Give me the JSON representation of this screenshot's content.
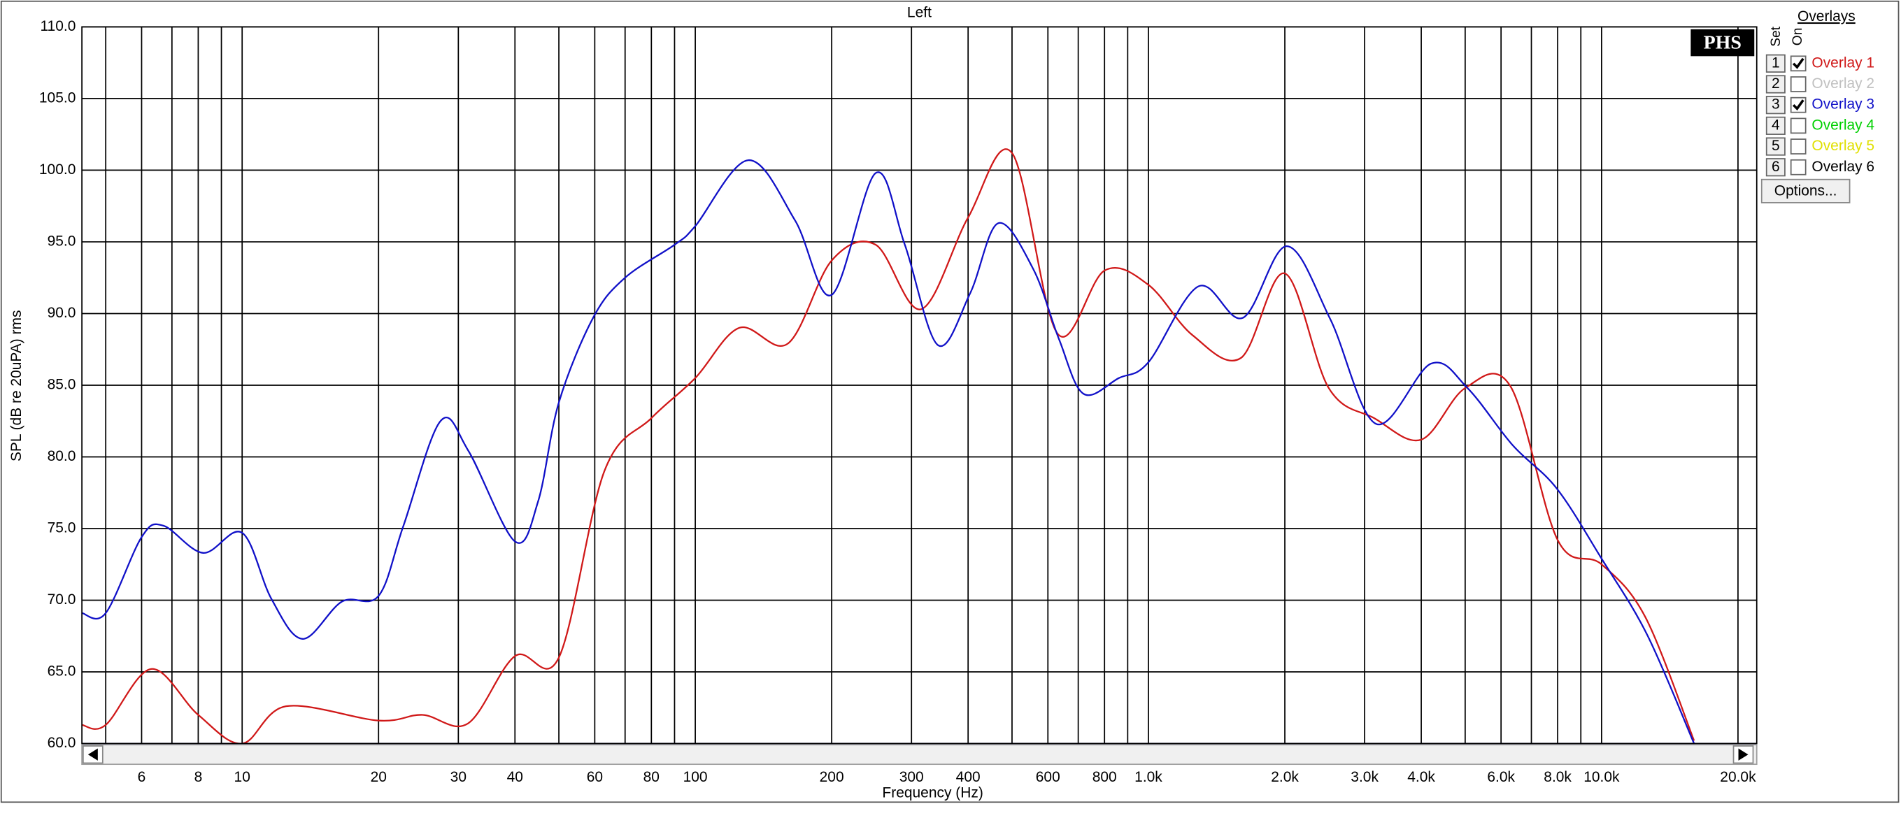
{
  "chart_data": {
    "type": "line",
    "title": "Left",
    "xlabel": "Frequency (Hz)",
    "ylabel": "SPL (dB re 20uPA) rms",
    "xscale": "log",
    "grid": true,
    "xlim": [
      4.43,
      22000
    ],
    "ylim": [
      60,
      110
    ],
    "yticks": [
      {
        "value": 60,
        "label": "60.0"
      },
      {
        "value": 65,
        "label": "65.0"
      },
      {
        "value": 70,
        "label": "70.0"
      },
      {
        "value": 75,
        "label": "75.0"
      },
      {
        "value": 80,
        "label": "80.0"
      },
      {
        "value": 85,
        "label": "85.0"
      },
      {
        "value": 90,
        "label": "90.0"
      },
      {
        "value": 95,
        "label": "95.0"
      },
      {
        "value": 100,
        "label": "100.0"
      },
      {
        "value": 105,
        "label": "105.0"
      },
      {
        "value": 110,
        "label": "110.0"
      }
    ],
    "xticks": [
      {
        "value": 5,
        "label": null
      },
      6,
      {
        "value": 7,
        "label": null
      },
      8,
      {
        "value": 9,
        "label": null
      },
      10,
      20,
      30,
      40,
      {
        "value": 50,
        "label": null
      },
      60,
      {
        "value": 70,
        "label": null
      },
      80,
      {
        "value": 90,
        "label": null
      },
      100,
      200,
      300,
      400,
      {
        "value": 500,
        "label": null
      },
      600,
      {
        "value": 700,
        "label": null
      },
      800,
      {
        "value": 900,
        "label": null
      },
      {
        "value": 1000,
        "label": "1.0k"
      },
      {
        "value": 2000,
        "label": "2.0k"
      },
      {
        "value": 3000,
        "label": "3.0k"
      },
      {
        "value": 4000,
        "label": "4.0k"
      },
      {
        "value": 5000,
        "label": null
      },
      {
        "value": 6000,
        "label": "6.0k"
      },
      {
        "value": 7000,
        "label": null
      },
      {
        "value": 8000,
        "label": "8.0k"
      },
      {
        "value": 9000,
        "label": null
      },
      {
        "value": 10000,
        "label": "10.0k"
      },
      {
        "value": 20000,
        "label": "20.0k"
      }
    ],
    "series": [
      {
        "name": "Overlay 1",
        "color": "#d01818",
        "x": [
          4.43,
          5,
          6.3,
          8,
          10,
          12.5,
          20,
          25,
          31.5,
          40,
          50,
          63,
          80,
          100,
          125,
          160,
          200,
          250,
          315,
          400,
          500,
          630,
          800,
          1000,
          1250,
          1600,
          2000,
          2500,
          3150,
          4000,
          5000,
          6300,
          8000,
          10000,
          12500,
          16000
        ],
        "values": [
          61.3,
          61.3,
          65.2,
          62.0,
          60.0,
          62.6,
          61.6,
          62.0,
          61.4,
          66.1,
          66.0,
          79.0,
          82.7,
          85.5,
          89.0,
          87.9,
          93.7,
          94.8,
          90.3,
          96.7,
          101.2,
          88.6,
          93.0,
          92.0,
          88.5,
          86.9,
          92.8,
          84.8,
          82.7,
          81.2,
          84.8,
          84.9,
          74.2,
          72.5,
          68.8,
          60.2
        ]
      },
      {
        "name": "Overlay 3",
        "color": "#1010c8",
        "x": [
          4.43,
          5,
          6,
          6.7,
          8.2,
          10,
          11.6,
          13.6,
          16.6,
          20,
          22.7,
          27.4,
          31.6,
          40,
          45,
          50,
          59.5,
          70,
          90,
          100,
          131,
          166,
          200,
          250,
          290,
          343,
          404,
          466,
          557,
          635,
          719,
          861,
          1000,
          1290,
          1616,
          2020,
          2520,
          3180,
          4200,
          5060,
          6370,
          7960,
          10000,
          12600,
          16000
        ],
        "values": [
          69.1,
          69.1,
          74.4,
          75.2,
          73.3,
          74.7,
          70.1,
          67.3,
          69.9,
          70.3,
          75.2,
          82.5,
          80.4,
          74.1,
          76.9,
          83.8,
          89.7,
          92.5,
          94.8,
          96.1,
          100.7,
          96.5,
          91.3,
          99.8,
          94.8,
          87.8,
          91.4,
          96.3,
          93.1,
          88.2,
          84.4,
          85.5,
          86.6,
          91.9,
          89.7,
          94.7,
          89.6,
          82.3,
          86.5,
          84.8,
          80.8,
          77.8,
          72.9,
          67.6,
          60.0
        ]
      }
    ]
  },
  "logo": "PHS",
  "overlay_panel": {
    "title": "Overlays",
    "set_label": "Set",
    "on_label": "On",
    "button": "Options...",
    "items": [
      {
        "number": 1,
        "checked": true
      },
      {
        "number": 2,
        "name": "Overlay 2",
        "color": "#c0c0c0",
        "checked": false
      },
      {
        "number": 3,
        "checked": true
      },
      {
        "number": 4,
        "name": "Overlay 4",
        "color": "#00d000",
        "checked": false
      },
      {
        "number": 5,
        "name": "Overlay 5",
        "color": "#e0e000",
        "checked": false
      },
      {
        "number": 6,
        "name": "Overlay 6",
        "color": "#000000",
        "checked": false
      }
    ]
  }
}
